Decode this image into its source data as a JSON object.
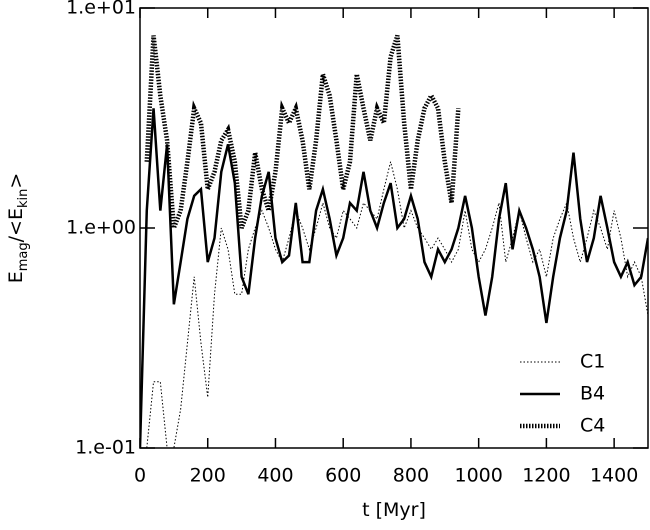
{
  "chart_data": {
    "type": "line",
    "xlabel": "t [Myr]",
    "ylabel": [
      "E",
      "mag",
      "/<E",
      "kin",
      ">"
    ],
    "x": [
      0,
      20,
      40,
      60,
      80,
      100,
      120,
      140,
      160,
      180,
      200,
      220,
      240,
      260,
      280,
      300,
      320,
      340,
      360,
      380,
      400,
      420,
      440,
      460,
      480,
      500,
      520,
      540,
      560,
      580,
      600,
      620,
      640,
      660,
      680,
      700,
      720,
      740,
      760,
      780,
      800,
      820,
      840,
      860,
      880,
      900,
      920,
      940,
      960,
      980,
      1000,
      1020,
      1040,
      1060,
      1080,
      1100,
      1120,
      1140,
      1160,
      1180,
      1200,
      1220,
      1240,
      1260,
      1280,
      1300,
      1320,
      1340,
      1360,
      1380,
      1400,
      1420,
      1440,
      1460,
      1480,
      1500
    ],
    "series": [
      {
        "name": "C1",
        "color": "#000000",
        "style": "thin-dotted",
        "values": [
          0.1,
          0.1,
          0.2,
          0.2,
          0.1,
          0.1,
          0.15,
          0.3,
          0.6,
          0.3,
          0.17,
          0.5,
          1.0,
          0.8,
          0.5,
          0.5,
          0.8,
          1.0,
          1.2,
          1.0,
          0.8,
          0.7,
          0.9,
          1.2,
          1.0,
          0.8,
          1.0,
          1.3,
          1.0,
          0.9,
          1.2,
          1.1,
          1.0,
          1.3,
          1.2,
          1.1,
          1.5,
          2.0,
          1.5,
          1.0,
          1.2,
          1.0,
          0.9,
          0.8,
          0.9,
          0.8,
          0.7,
          0.8,
          1.2,
          0.8,
          0.7,
          0.8,
          1.0,
          1.3,
          0.7,
          0.9,
          1.2,
          0.9,
          0.7,
          0.8,
          0.6,
          0.9,
          1.1,
          1.3,
          0.9,
          0.7,
          0.9,
          1.2,
          1.0,
          0.8,
          1.2,
          0.9,
          0.6,
          0.7,
          0.6,
          0.4
        ]
      },
      {
        "name": "B4",
        "color": "#000000",
        "style": "thick-solid",
        "values": [
          0.1,
          1.2,
          3.5,
          1.2,
          2.4,
          0.45,
          0.7,
          1.1,
          1.4,
          1.5,
          0.7,
          0.9,
          1.8,
          2.4,
          1.6,
          0.6,
          0.5,
          0.9,
          1.4,
          1.8,
          0.9,
          0.7,
          0.75,
          1.3,
          0.7,
          0.7,
          1.2,
          1.5,
          1.1,
          0.75,
          0.9,
          1.3,
          1.2,
          1.8,
          1.2,
          1.0,
          1.3,
          1.6,
          1.0,
          1.1,
          1.4,
          1.1,
          0.7,
          0.6,
          0.8,
          0.7,
          0.8,
          1.0,
          1.4,
          1.0,
          0.6,
          0.4,
          0.6,
          1.1,
          1.6,
          0.8,
          1.2,
          1.0,
          0.8,
          0.6,
          0.37,
          0.6,
          0.9,
          1.2,
          2.2,
          1.1,
          0.7,
          0.9,
          1.4,
          1.0,
          0.7,
          0.6,
          0.7,
          0.55,
          0.6,
          0.9
        ]
      },
      {
        "name": "C4",
        "color": "#000000",
        "style": "thick-dotted",
        "values": [
          null,
          2.0,
          7.5,
          4.0,
          2.5,
          1.0,
          1.2,
          2.0,
          3.5,
          3.0,
          1.5,
          1.8,
          2.5,
          2.8,
          2.0,
          1.0,
          1.2,
          2.2,
          1.5,
          1.2,
          1.8,
          3.5,
          3.0,
          3.5,
          2.5,
          1.5,
          2.5,
          5.0,
          4.0,
          2.5,
          1.5,
          2.0,
          5.0,
          3.5,
          2.5,
          3.5,
          3.0,
          6.0,
          7.5,
          3.0,
          1.5,
          2.5,
          3.5,
          4.0,
          3.5,
          2.0,
          1.3,
          3.5,
          null,
          null,
          null,
          null,
          null,
          null,
          null,
          null,
          null,
          null,
          null,
          null,
          null,
          null,
          null,
          null,
          null,
          null,
          null,
          null,
          null,
          null,
          null,
          null,
          null,
          null,
          null,
          null
        ]
      }
    ],
    "xlim": [
      0,
      1500
    ],
    "xticks": [
      0,
      200,
      400,
      600,
      800,
      1000,
      1200,
      1400
    ],
    "ylim": [
      0.1,
      10
    ],
    "ylog": true,
    "yticks": [
      {
        "value": 0.1,
        "label": "1.e-01"
      },
      {
        "value": 1,
        "label": "1.e+00"
      },
      {
        "value": 10,
        "label": "1.e+01"
      }
    ],
    "legend": "lower right"
  }
}
